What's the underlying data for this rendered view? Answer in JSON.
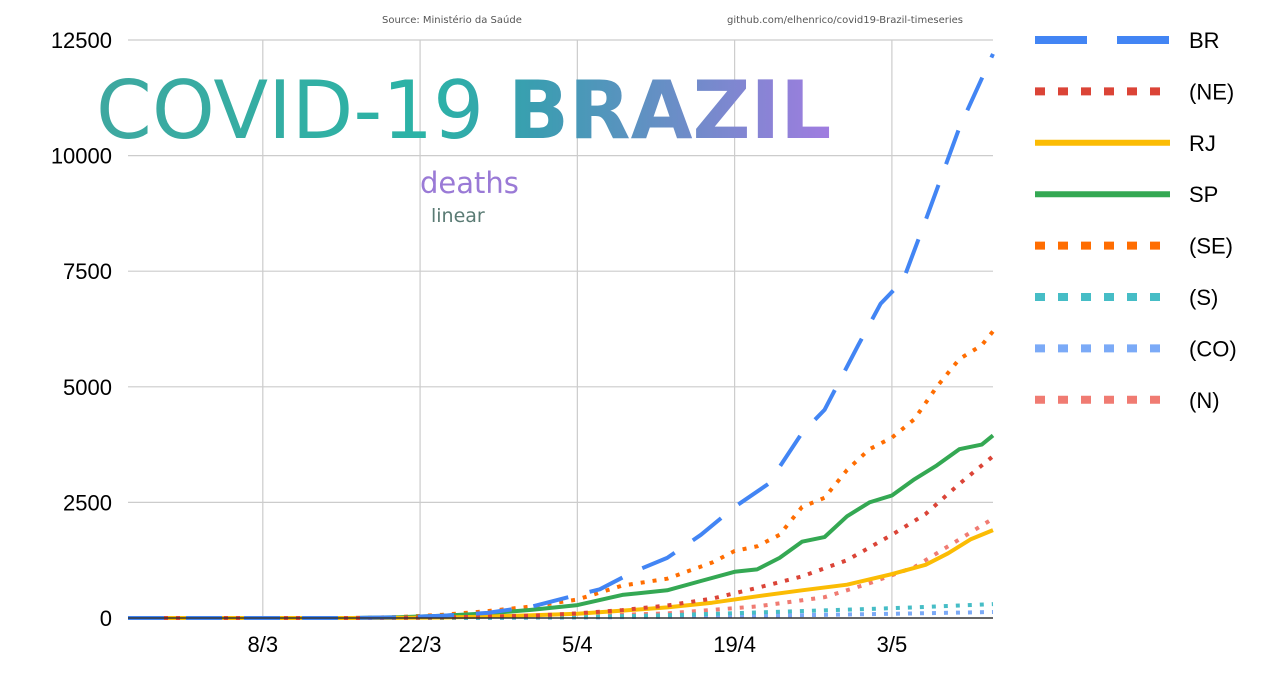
{
  "source_left": "Source: Ministério da Saúde",
  "source_right": "github.com/elhenrico/covid19-Brazil-timeseries",
  "title_part1": "COVID-19",
  "title_part2": "BRAZIL",
  "subtitle_metric": "deaths",
  "subtitle_scale": "linear",
  "chart_data": {
    "type": "line",
    "title": "COVID-19 BRAZIL deaths linear",
    "x_labels": [
      "8/3",
      "22/3",
      "5/4",
      "19/4",
      "3/5"
    ],
    "x_day_of_year_ticks": [
      68,
      82,
      96,
      110,
      124
    ],
    "y_ticks": [
      0,
      2500,
      5000,
      7500,
      10000,
      12500
    ],
    "ylim": [
      0,
      12500
    ],
    "xlim": [
      "25/2",
      "12/5"
    ],
    "grid": true,
    "legend_position": "right",
    "series": [
      {
        "name": "BR",
        "color": "#4285f4",
        "style": "long-dash",
        "points": [
          [
            "25/2",
            0
          ],
          [
            "16/3",
            0
          ],
          [
            "20/3",
            15
          ],
          [
            "24/3",
            50
          ],
          [
            "28/3",
            110
          ],
          [
            "1/4",
            250
          ],
          [
            "5/4",
            500
          ],
          [
            "7/4",
            620
          ],
          [
            "10/4",
            1000
          ],
          [
            "13/4",
            1300
          ],
          [
            "16/4",
            1800
          ],
          [
            "19/4",
            2400
          ],
          [
            "22/4",
            2900
          ],
          [
            "25/4",
            4000
          ],
          [
            "27/4",
            4500
          ],
          [
            "30/4",
            5900
          ],
          [
            "2/5",
            6800
          ],
          [
            "4/5",
            7300
          ],
          [
            "6/5",
            8600
          ],
          [
            "9/5",
            10600
          ],
          [
            "12/5",
            12200
          ]
        ]
      },
      {
        "name": "(NE)",
        "color": "#db4437",
        "style": "dotted",
        "points": [
          [
            "25/2",
            0
          ],
          [
            "18/3",
            0
          ],
          [
            "24/3",
            15
          ],
          [
            "28/3",
            30
          ],
          [
            "1/4",
            50
          ],
          [
            "5/4",
            100
          ],
          [
            "9/4",
            170
          ],
          [
            "13/4",
            270
          ],
          [
            "17/4",
            420
          ],
          [
            "21/4",
            650
          ],
          [
            "25/4",
            900
          ],
          [
            "29/4",
            1250
          ],
          [
            "3/5",
            1800
          ],
          [
            "6/5",
            2250
          ],
          [
            "9/5",
            2900
          ],
          [
            "12/5",
            3500
          ]
        ]
      },
      {
        "name": "RJ",
        "color": "#fbbc04",
        "style": "solid",
        "points": [
          [
            "25/2",
            0
          ],
          [
            "18/3",
            0
          ],
          [
            "24/3",
            10
          ],
          [
            "28/3",
            30
          ],
          [
            "1/4",
            60
          ],
          [
            "5/4",
            90
          ],
          [
            "9/4",
            160
          ],
          [
            "13/4",
            230
          ],
          [
            "17/4",
            330
          ],
          [
            "21/4",
            470
          ],
          [
            "25/4",
            600
          ],
          [
            "29/4",
            720
          ],
          [
            "3/5",
            950
          ],
          [
            "6/5",
            1150
          ],
          [
            "8/5",
            1400
          ],
          [
            "10/5",
            1700
          ],
          [
            "12/5",
            1900
          ]
        ]
      },
      {
        "name": "SP",
        "color": "#34a853",
        "style": "solid",
        "points": [
          [
            "25/2",
            0
          ],
          [
            "16/3",
            0
          ],
          [
            "20/3",
            15
          ],
          [
            "24/3",
            50
          ],
          [
            "28/3",
            100
          ],
          [
            "1/4",
            180
          ],
          [
            "5/4",
            280
          ],
          [
            "9/4",
            500
          ],
          [
            "13/4",
            600
          ],
          [
            "16/4",
            800
          ],
          [
            "19/4",
            1000
          ],
          [
            "21/4",
            1050
          ],
          [
            "23/4",
            1300
          ],
          [
            "25/4",
            1650
          ],
          [
            "27/4",
            1750
          ],
          [
            "29/4",
            2200
          ],
          [
            "1/5",
            2500
          ],
          [
            "3/5",
            2650
          ],
          [
            "5/5",
            3000
          ],
          [
            "7/5",
            3300
          ],
          [
            "9/5",
            3650
          ],
          [
            "11/5",
            3750
          ],
          [
            "12/5",
            3950
          ]
        ]
      },
      {
        "name": "(SE)",
        "color": "#ff6d01",
        "style": "dotted",
        "points": [
          [
            "25/2",
            0
          ],
          [
            "16/3",
            0
          ],
          [
            "20/3",
            20
          ],
          [
            "24/3",
            70
          ],
          [
            "28/3",
            150
          ],
          [
            "1/4",
            250
          ],
          [
            "5/4",
            400
          ],
          [
            "9/4",
            700
          ],
          [
            "13/4",
            850
          ],
          [
            "17/4",
            1200
          ],
          [
            "19/4",
            1450
          ],
          [
            "21/4",
            1550
          ],
          [
            "23/4",
            1800
          ],
          [
            "25/4",
            2400
          ],
          [
            "27/4",
            2600
          ],
          [
            "29/4",
            3200
          ],
          [
            "1/5",
            3650
          ],
          [
            "3/5",
            3900
          ],
          [
            "5/5",
            4300
          ],
          [
            "7/5",
            5000
          ],
          [
            "9/5",
            5600
          ],
          [
            "11/5",
            5900
          ],
          [
            "12/5",
            6200
          ]
        ]
      },
      {
        "name": "(S)",
        "color": "#46bdc6",
        "style": "dotted",
        "points": [
          [
            "25/2",
            0
          ],
          [
            "24/3",
            0
          ],
          [
            "5/4",
            20
          ],
          [
            "13/4",
            60
          ],
          [
            "21/4",
            120
          ],
          [
            "29/4",
            180
          ],
          [
            "5/5",
            230
          ],
          [
            "12/5",
            300
          ]
        ]
      },
      {
        "name": "(CO)",
        "color": "#7baaf7",
        "style": "dotted",
        "points": [
          [
            "25/2",
            0
          ],
          [
            "26/3",
            0
          ],
          [
            "5/4",
            10
          ],
          [
            "15/4",
            30
          ],
          [
            "25/4",
            60
          ],
          [
            "3/5",
            90
          ],
          [
            "12/5",
            130
          ]
        ]
      },
      {
        "name": "(N)",
        "color": "#f07b72",
        "style": "dotted",
        "points": [
          [
            "25/2",
            0
          ],
          [
            "22/3",
            0
          ],
          [
            "28/3",
            10
          ],
          [
            "5/4",
            40
          ],
          [
            "13/4",
            100
          ],
          [
            "21/4",
            250
          ],
          [
            "27/4",
            450
          ],
          [
            "1/5",
            750
          ],
          [
            "5/5",
            1100
          ],
          [
            "9/5",
            1700
          ],
          [
            "12/5",
            2150
          ]
        ]
      }
    ]
  }
}
